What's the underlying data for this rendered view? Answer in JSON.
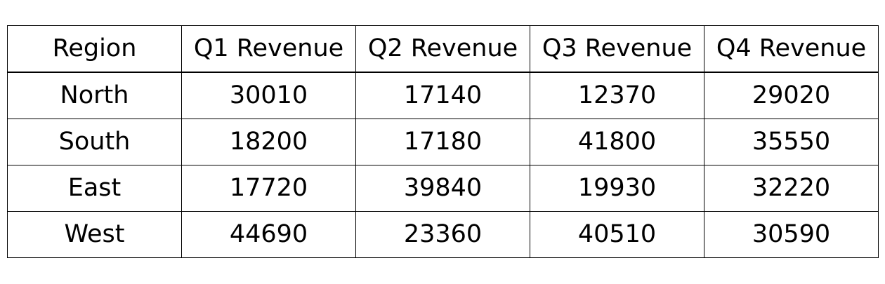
{
  "chart_data": {
    "type": "table",
    "columns": [
      "Region",
      "Q1 Revenue",
      "Q2 Revenue",
      "Q3 Revenue",
      "Q4 Revenue"
    ],
    "rows": [
      [
        "North",
        "30010",
        "17140",
        "12370",
        "29020"
      ],
      [
        "South",
        "18200",
        "17180",
        "41800",
        "35550"
      ],
      [
        "East",
        "17720",
        "39840",
        "19930",
        "32220"
      ],
      [
        "West",
        "44690",
        "23360",
        "40510",
        "30590"
      ]
    ]
  }
}
